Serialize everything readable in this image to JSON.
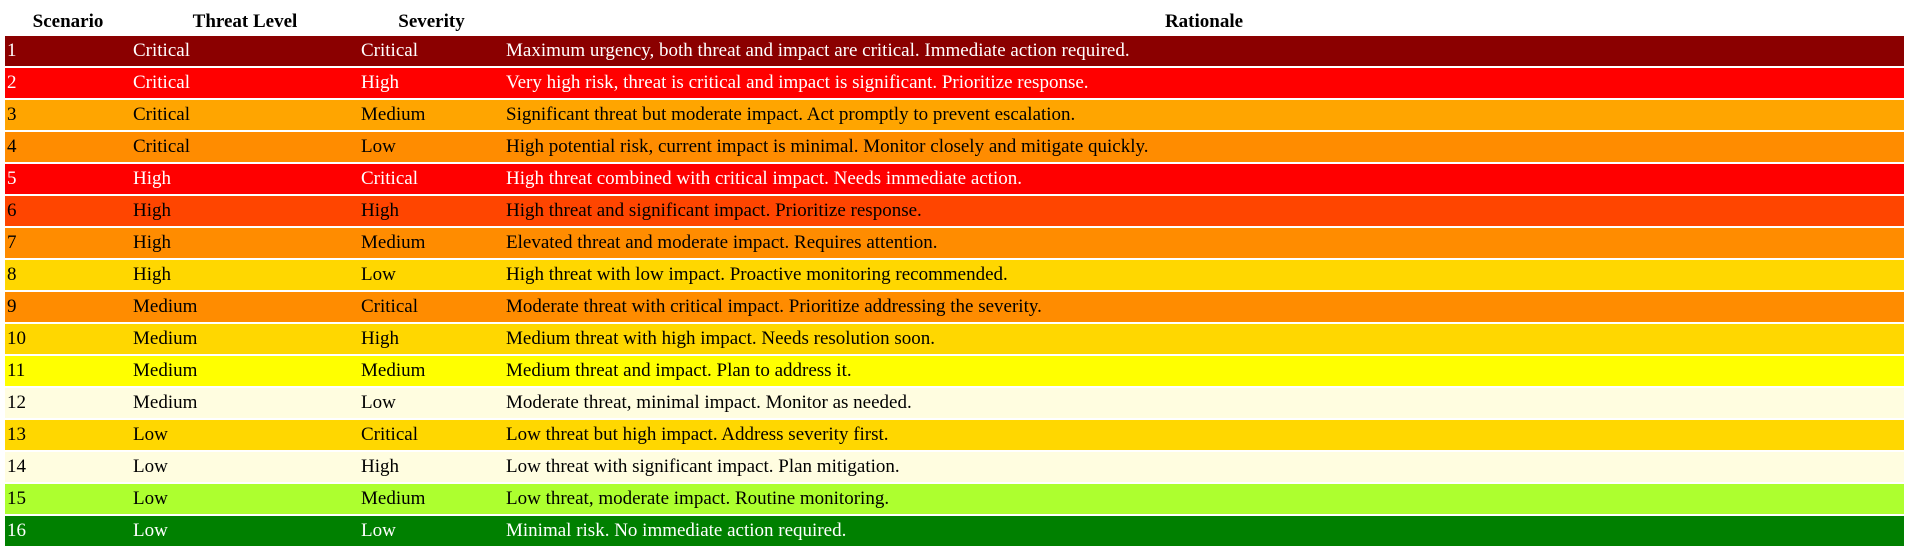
{
  "headers": [
    "Scenario",
    "Threat Level",
    "Severity",
    "Rationale"
  ],
  "colors": {
    "dark_red": "#8b0000",
    "red": "#ff0000",
    "orange": "#ffa500",
    "dark_orange": "#ff8c00",
    "orange_red": "#ff4500",
    "gold": "#ffd700",
    "yellow": "#ffff00",
    "light_yellow": "#fffde0",
    "green_yellow": "#adff2f",
    "green": "#008000"
  },
  "rows": [
    {
      "scenario": "1",
      "threat": "Critical",
      "severity": "Critical",
      "rationale": "Maximum urgency, both threat and impact are critical. Immediate action required.",
      "bg": "#8b0000",
      "fg": "#ffffff"
    },
    {
      "scenario": "2",
      "threat": "Critical",
      "severity": "High",
      "rationale": "Very high risk, threat is critical and impact is significant. Prioritize response.",
      "bg": "#ff0000",
      "fg": "#ffffff"
    },
    {
      "scenario": "3",
      "threat": "Critical",
      "severity": "Medium",
      "rationale": "Significant threat but moderate impact. Act promptly to prevent escalation.",
      "bg": "#ffa500",
      "fg": "#000000"
    },
    {
      "scenario": "4",
      "threat": "Critical",
      "severity": "Low",
      "rationale": "High potential risk, current impact is minimal. Monitor closely and mitigate quickly.",
      "bg": "#ff8c00",
      "fg": "#000000"
    },
    {
      "scenario": "5",
      "threat": "High",
      "severity": "Critical",
      "rationale": "High threat combined with critical impact. Needs immediate action.",
      "bg": "#ff0000",
      "fg": "#ffffff"
    },
    {
      "scenario": "6",
      "threat": "High",
      "severity": "High",
      "rationale": "High threat and significant impact. Prioritize response.",
      "bg": "#ff4500",
      "fg": "#000000"
    },
    {
      "scenario": "7",
      "threat": "High",
      "severity": "Medium",
      "rationale": "Elevated threat and moderate impact. Requires attention.",
      "bg": "#ff8c00",
      "fg": "#000000"
    },
    {
      "scenario": "8",
      "threat": "High",
      "severity": "Low",
      "rationale": "High threat with low impact. Proactive monitoring recommended.",
      "bg": "#ffd700",
      "fg": "#000000"
    },
    {
      "scenario": "9",
      "threat": "Medium",
      "severity": "Critical",
      "rationale": "Moderate threat with critical impact. Prioritize addressing the severity.",
      "bg": "#ff8c00",
      "fg": "#000000"
    },
    {
      "scenario": "10",
      "threat": "Medium",
      "severity": "High",
      "rationale": "Medium threat with high impact. Needs resolution soon.",
      "bg": "#ffd700",
      "fg": "#000000"
    },
    {
      "scenario": "11",
      "threat": "Medium",
      "severity": "Medium",
      "rationale": "Medium threat and impact. Plan to address it.",
      "bg": "#ffff00",
      "fg": "#000000"
    },
    {
      "scenario": "12",
      "threat": "Medium",
      "severity": "Low",
      "rationale": "Moderate threat, minimal impact. Monitor as needed.",
      "bg": "#fffde0",
      "fg": "#000000"
    },
    {
      "scenario": "13",
      "threat": "Low",
      "severity": "Critical",
      "rationale": "Low threat but high impact. Address severity first.",
      "bg": "#ffd700",
      "fg": "#000000"
    },
    {
      "scenario": "14",
      "threat": "Low",
      "severity": "High",
      "rationale": "Low threat with significant impact. Plan mitigation.",
      "bg": "#fffde0",
      "fg": "#000000"
    },
    {
      "scenario": "15",
      "threat": "Low",
      "severity": "Medium",
      "rationale": "Low threat, moderate impact. Routine monitoring.",
      "bg": "#adff2f",
      "fg": "#000000"
    },
    {
      "scenario": "16",
      "threat": "Low",
      "severity": "Low",
      "rationale": "Minimal risk. No immediate action required.",
      "bg": "#008000",
      "fg": "#ffffff"
    }
  ]
}
